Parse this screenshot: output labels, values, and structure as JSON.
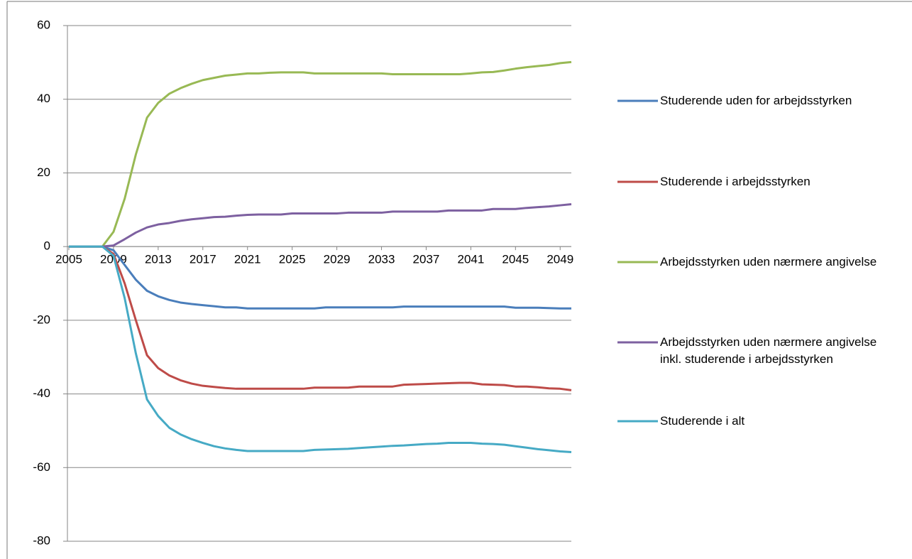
{
  "chart_data": {
    "type": "line",
    "x": [
      2005,
      2006,
      2007,
      2008,
      2009,
      2010,
      2011,
      2012,
      2013,
      2014,
      2015,
      2016,
      2017,
      2018,
      2019,
      2020,
      2021,
      2022,
      2023,
      2024,
      2025,
      2026,
      2027,
      2028,
      2029,
      2030,
      2031,
      2032,
      2033,
      2034,
      2035,
      2036,
      2037,
      2038,
      2039,
      2040,
      2041,
      2042,
      2043,
      2044,
      2045,
      2046,
      2047,
      2048,
      2049,
      2050
    ],
    "xlim": [
      2005,
      2050
    ],
    "xticks": [
      2005,
      2009,
      2013,
      2017,
      2021,
      2025,
      2029,
      2033,
      2037,
      2041,
      2045,
      2049
    ],
    "ylim": [
      -80,
      60
    ],
    "yticks": [
      -80,
      -60,
      -40,
      -20,
      0,
      20,
      40,
      60
    ],
    "grid": true,
    "legend": "right",
    "series": [
      {
        "name": "Studerende uden for arbejdsstyrken",
        "color": "#4a7ebb",
        "values": [
          0,
          0,
          0,
          0,
          -1,
          -5,
          -9,
          -12,
          -13.5,
          -14.5,
          -15.2,
          -15.6,
          -15.9,
          -16.2,
          -16.5,
          -16.5,
          -16.8,
          -16.8,
          -16.8,
          -16.8,
          -16.8,
          -16.8,
          -16.8,
          -16.5,
          -16.5,
          -16.5,
          -16.5,
          -16.5,
          -16.5,
          -16.5,
          -16.3,
          -16.3,
          -16.3,
          -16.3,
          -16.3,
          -16.3,
          -16.3,
          -16.3,
          -16.3,
          -16.3,
          -16.6,
          -16.6,
          -16.6,
          -16.7,
          -16.8,
          -16.8
        ]
      },
      {
        "name": "Studerende i arbejdsstyrken",
        "color": "#be4b48",
        "values": [
          0,
          0,
          0,
          0,
          -2,
          -10,
          -20,
          -29.5,
          -33,
          -35,
          -36.3,
          -37.2,
          -37.8,
          -38.1,
          -38.4,
          -38.6,
          -38.6,
          -38.6,
          -38.6,
          -38.6,
          -38.6,
          -38.6,
          -38.3,
          -38.3,
          -38.3,
          -38.3,
          -38,
          -38,
          -38,
          -38,
          -37.5,
          -37.4,
          -37.3,
          -37.2,
          -37.1,
          -37,
          -37,
          -37.4,
          -37.5,
          -37.6,
          -38,
          -38,
          -38.2,
          -38.5,
          -38.6,
          -39
        ]
      },
      {
        "name": "Arbejdsstyrken uden nærmere angivelse",
        "color": "#98b954",
        "values": [
          0,
          0,
          0,
          0,
          4,
          13,
          25,
          35,
          39,
          41.5,
          43,
          44.2,
          45.2,
          45.8,
          46.4,
          46.7,
          47,
          47,
          47.2,
          47.3,
          47.3,
          47.3,
          47,
          47,
          47,
          47,
          47,
          47,
          47,
          46.8,
          46.8,
          46.8,
          46.8,
          46.8,
          46.8,
          46.8,
          47,
          47.3,
          47.4,
          47.8,
          48.3,
          48.7,
          49,
          49.3,
          49.8,
          50.1
        ]
      },
      {
        "name": "Arbejdsstyrken uden nærmere angivelse inkl. studerende i arbejdsstyrken",
        "color": "#7d60a0",
        "values": [
          0,
          0,
          0,
          0,
          0.3,
          2,
          3.8,
          5.2,
          6,
          6.4,
          7,
          7.4,
          7.7,
          8,
          8.1,
          8.4,
          8.6,
          8.7,
          8.7,
          8.7,
          9,
          9,
          9,
          9,
          9,
          9.2,
          9.2,
          9.2,
          9.2,
          9.5,
          9.5,
          9.5,
          9.5,
          9.5,
          9.8,
          9.8,
          9.8,
          9.8,
          10.2,
          10.2,
          10.2,
          10.5,
          10.7,
          10.9,
          11.2,
          11.5
        ]
      },
      {
        "name": "Studerende i alt",
        "color": "#46aac5",
        "values": [
          0,
          0,
          0,
          0,
          -2.5,
          -14,
          -29,
          -41.5,
          -46,
          -49.2,
          -51,
          -52.3,
          -53.3,
          -54.2,
          -54.8,
          -55.2,
          -55.5,
          -55.5,
          -55.5,
          -55.5,
          -55.5,
          -55.5,
          -55.2,
          -55.1,
          -55,
          -54.9,
          -54.7,
          -54.5,
          -54.3,
          -54.1,
          -54,
          -53.8,
          -53.6,
          -53.5,
          -53.3,
          -53.3,
          -53.3,
          -53.5,
          -53.6,
          -53.8,
          -54.2,
          -54.6,
          -55,
          -55.3,
          -55.6,
          -55.8
        ]
      }
    ]
  }
}
